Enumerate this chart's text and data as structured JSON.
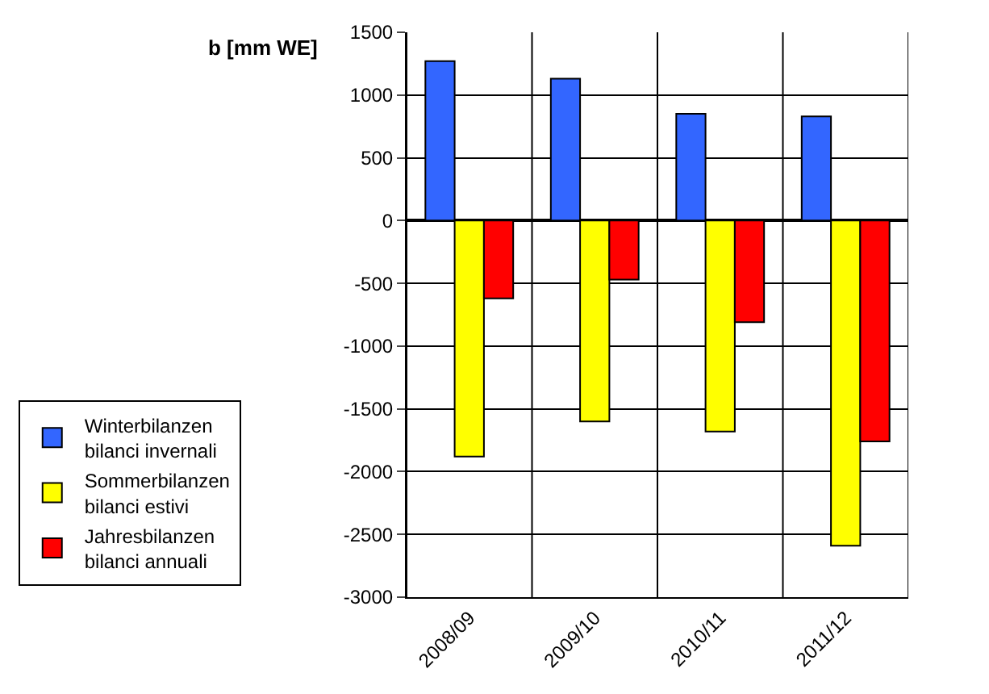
{
  "chart_data": {
    "type": "bar",
    "ylabel": "b [mm WE]",
    "categories": [
      "2008/09",
      "2009/10",
      "2010/11",
      "2011/12"
    ],
    "series": [
      {
        "name": "Winterbilanzen\nbilanci invernali",
        "color": "#3366ff",
        "values": [
          1270,
          1130,
          850,
          830
        ]
      },
      {
        "name": "Sommerbilanzen\nbilanci estivi",
        "color": "#ffff00",
        "values": [
          -1880,
          -1600,
          -1680,
          -2590
        ]
      },
      {
        "name": "Jahresbilanzen\nbilanci annuali",
        "color": "#ff0000",
        "values": [
          -620,
          -470,
          -810,
          -1760
        ]
      }
    ],
    "ylim": [
      -3000,
      1500
    ],
    "yticks": [
      -3000,
      -2500,
      -2000,
      -1500,
      -1000,
      -500,
      0,
      500,
      1000,
      1500
    ],
    "grid": true,
    "legend": "left"
  }
}
